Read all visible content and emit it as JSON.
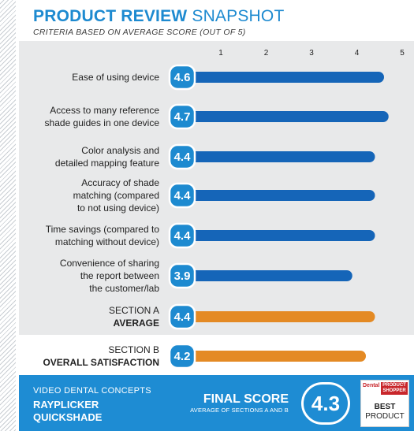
{
  "header": {
    "title_bold": "PRODUCT REVIEW",
    "title_light": "SNAPSHOT",
    "subtitle": "CRITERIA BASED ON AVERAGE SCORE (OUT OF 5)"
  },
  "colors": {
    "accent_blue": "#1d8ad0",
    "bar_blue": "#1565b8",
    "bar_orange": "#e48a24",
    "panel_gray": "#e8e9ea",
    "footer_blue": "#1e8cd3",
    "award_red": "#c8262b"
  },
  "chart_data": {
    "type": "bar",
    "orientation": "horizontal",
    "title": "PRODUCT REVIEW SNAPSHOT",
    "subtitle": "CRITERIA BASED ON AVERAGE SCORE (OUT OF 5)",
    "xlim": [
      0,
      5
    ],
    "x_ticks": [
      "1",
      "2",
      "3",
      "4",
      "5"
    ],
    "grid": false,
    "categories": [
      "Ease of using device",
      "Access to many reference shade guides in one device",
      "Color analysis and detailed mapping feature",
      "Accuracy of shade matching (compared to not using device)",
      "Time savings (compared to matching without device)",
      "Convenience of sharing the report between the customer/lab",
      "SECTION A AVERAGE",
      "SECTION B OVERALL SATISFACTION"
    ],
    "label_lines": [
      [
        "Ease of using device"
      ],
      [
        "Access to many reference",
        "shade guides in one device"
      ],
      [
        "Color analysis and",
        "detailed mapping feature"
      ],
      [
        "Accuracy of shade",
        "matching (compared",
        "to not using device)"
      ],
      [
        "Time savings (compared to",
        "matching without device)"
      ],
      [
        "Convenience of sharing",
        "the report between",
        "the customer/lab"
      ],
      [
        "SECTION A",
        "AVERAGE"
      ],
      [
        "SECTION B",
        "OVERALL SATISFACTION"
      ]
    ],
    "values": [
      4.6,
      4.7,
      4.4,
      4.4,
      4.4,
      3.9,
      4.4,
      4.2
    ],
    "value_labels": [
      "4.6",
      "4.7",
      "4.4",
      "4.4",
      "4.4",
      "3.9",
      "4.4",
      "4.2"
    ],
    "bar_colors": [
      "blue",
      "blue",
      "blue",
      "blue",
      "blue",
      "blue",
      "orange",
      "orange"
    ]
  },
  "footer": {
    "company": "VIDEO DENTAL CONCEPTS",
    "product": "RAYPLICKER QUICKSHADE",
    "final_title": "FINAL SCORE",
    "final_sub": "AVERAGE OF SECTIONS A AND B",
    "final_score": "4.3",
    "award_brand": "Dental",
    "award_brand2": "PRODUCT SHOPPER",
    "award_best": "BEST",
    "award_product": "PRODUCT"
  }
}
